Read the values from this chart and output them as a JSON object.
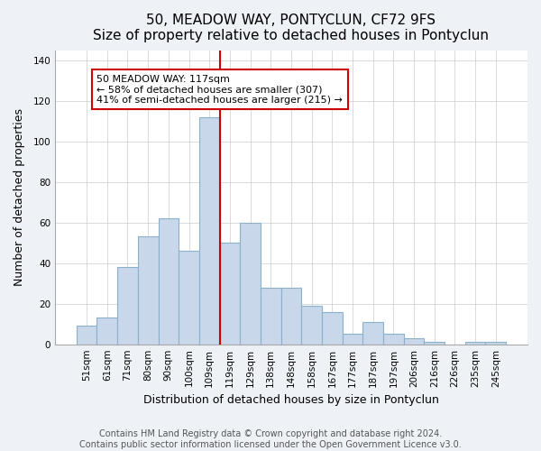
{
  "title": "50, MEADOW WAY, PONTYCLUN, CF72 9FS",
  "subtitle": "Size of property relative to detached houses in Pontyclun",
  "xlabel": "Distribution of detached houses by size in Pontyclun",
  "ylabel": "Number of detached properties",
  "bar_labels": [
    "51sqm",
    "61sqm",
    "71sqm",
    "80sqm",
    "90sqm",
    "100sqm",
    "109sqm",
    "119sqm",
    "129sqm",
    "138sqm",
    "148sqm",
    "158sqm",
    "167sqm",
    "177sqm",
    "187sqm",
    "197sqm",
    "206sqm",
    "216sqm",
    "226sqm",
    "235sqm",
    "245sqm"
  ],
  "bar_values": [
    9,
    13,
    38,
    53,
    62,
    46,
    112,
    50,
    60,
    28,
    28,
    19,
    16,
    5,
    11,
    5,
    3,
    1,
    0,
    1,
    1
  ],
  "bar_color": "#c8d8ea",
  "bar_edge_color": "#8ab0cc",
  "vline_color": "#cc0000",
  "annotation_text": "50 MEADOW WAY: 117sqm\n← 58% of detached houses are smaller (307)\n41% of semi-detached houses are larger (215) →",
  "annotation_box_color": "#ffffff",
  "annotation_box_edge": "#cc0000",
  "ylim": [
    0,
    145
  ],
  "yticks": [
    0,
    20,
    40,
    60,
    80,
    100,
    120,
    140
  ],
  "footer_line1": "Contains HM Land Registry data © Crown copyright and database right 2024.",
  "footer_line2": "Contains public sector information licensed under the Open Government Licence v3.0.",
  "bg_color": "#eef2f7",
  "plot_bg_color": "#ffffff",
  "title_fontsize": 11,
  "xlabel_fontsize": 9,
  "ylabel_fontsize": 9,
  "tick_fontsize": 7.5,
  "footer_fontsize": 7
}
